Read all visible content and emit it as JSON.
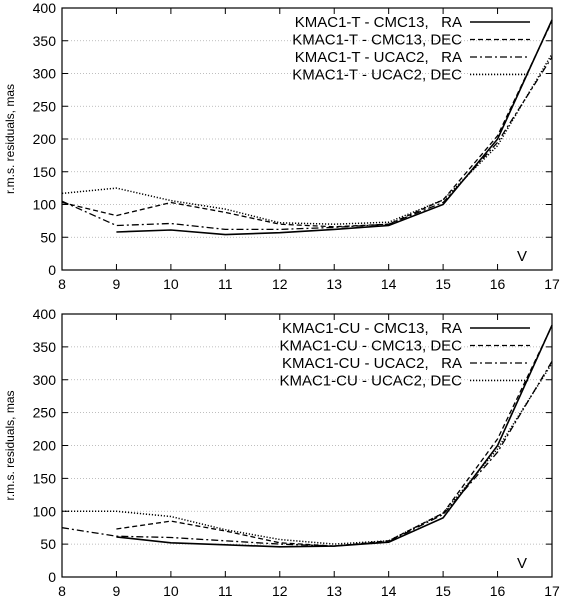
{
  "chart_data": [
    {
      "type": "line",
      "title": "",
      "xlabel": "",
      "ylabel": "r.m.s. residuals, mas",
      "xlim": [
        8,
        17
      ],
      "ylim": [
        0,
        400
      ],
      "x_ticks": [
        "8",
        "9",
        "10",
        "11",
        "12",
        "13",
        "14",
        "15",
        "16",
        "17"
      ],
      "y_ticks": [
        "0",
        "50",
        "100",
        "150",
        "200",
        "250",
        "300",
        "350",
        "400"
      ],
      "grid": "horizontal dotted",
      "legend_position": "top-right",
      "annotation": "V",
      "series": [
        {
          "name": "KMAC1-T - CMC13,   RA",
          "style": "solid",
          "x": [
            9,
            10,
            11,
            12,
            13,
            14,
            15,
            16,
            17
          ],
          "y": [
            58,
            61,
            54,
            57,
            62,
            68,
            100,
            200,
            382
          ]
        },
        {
          "name": "KMAC1-T - CMC13, DEC",
          "style": "dashed",
          "x": [
            8,
            9,
            10,
            11,
            12,
            13,
            14,
            15,
            16,
            17
          ],
          "y": [
            103,
            83,
            103,
            88,
            70,
            66,
            70,
            107,
            205,
            380
          ]
        },
        {
          "name": "KMAC1-T - UCAC2,   RA",
          "style": "dashdot",
          "x": [
            8,
            9,
            10,
            11,
            12,
            13,
            14,
            15,
            16,
            17
          ],
          "y": [
            105,
            68,
            71,
            62,
            62,
            65,
            70,
            103,
            195,
            325
          ]
        },
        {
          "name": "KMAC1-T - UCAC2, DEC",
          "style": "dotted",
          "x": [
            8,
            9,
            10,
            11,
            12,
            13,
            14,
            15,
            16,
            17
          ],
          "y": [
            117,
            125,
            106,
            93,
            72,
            70,
            73,
            107,
            190,
            330
          ]
        }
      ]
    },
    {
      "type": "line",
      "title": "",
      "xlabel": "",
      "ylabel": "r.m.s. residuals, mas",
      "xlim": [
        8,
        17
      ],
      "ylim": [
        0,
        400
      ],
      "x_ticks": [
        "8",
        "9",
        "10",
        "11",
        "12",
        "13",
        "14",
        "15",
        "16",
        "17"
      ],
      "y_ticks": [
        "0",
        "50",
        "100",
        "150",
        "200",
        "250",
        "300",
        "350",
        "400"
      ],
      "grid": "horizontal dotted",
      "legend_position": "top-right",
      "annotation": "V",
      "series": [
        {
          "name": "KMAC1-CU - CMC13,   RA",
          "style": "solid",
          "x": [
            9,
            10,
            11,
            12,
            13,
            14,
            15,
            16,
            17
          ],
          "y": [
            61,
            52,
            49,
            46,
            47,
            53,
            90,
            200,
            383
          ]
        },
        {
          "name": "KMAC1-CU - CMC13, DEC",
          "style": "dashed",
          "x": [
            9,
            10,
            11,
            12,
            13,
            14,
            15,
            16,
            17
          ],
          "y": [
            73,
            85,
            70,
            52,
            47,
            55,
            97,
            210,
            382
          ]
        },
        {
          "name": "KMAC1-CU - UCAC2,   RA",
          "style": "dashdot",
          "x": [
            8,
            9,
            10,
            11,
            12,
            13,
            14,
            15,
            16,
            17
          ],
          "y": [
            75,
            62,
            60,
            55,
            50,
            47,
            54,
            95,
            190,
            328
          ]
        },
        {
          "name": "KMAC1-CU - UCAC2, DEC",
          "style": "dotted",
          "x": [
            8,
            9,
            10,
            11,
            12,
            13,
            14,
            15,
            16,
            17
          ],
          "y": [
            100,
            100,
            92,
            72,
            57,
            50,
            55,
            97,
            195,
            325
          ]
        }
      ]
    }
  ]
}
